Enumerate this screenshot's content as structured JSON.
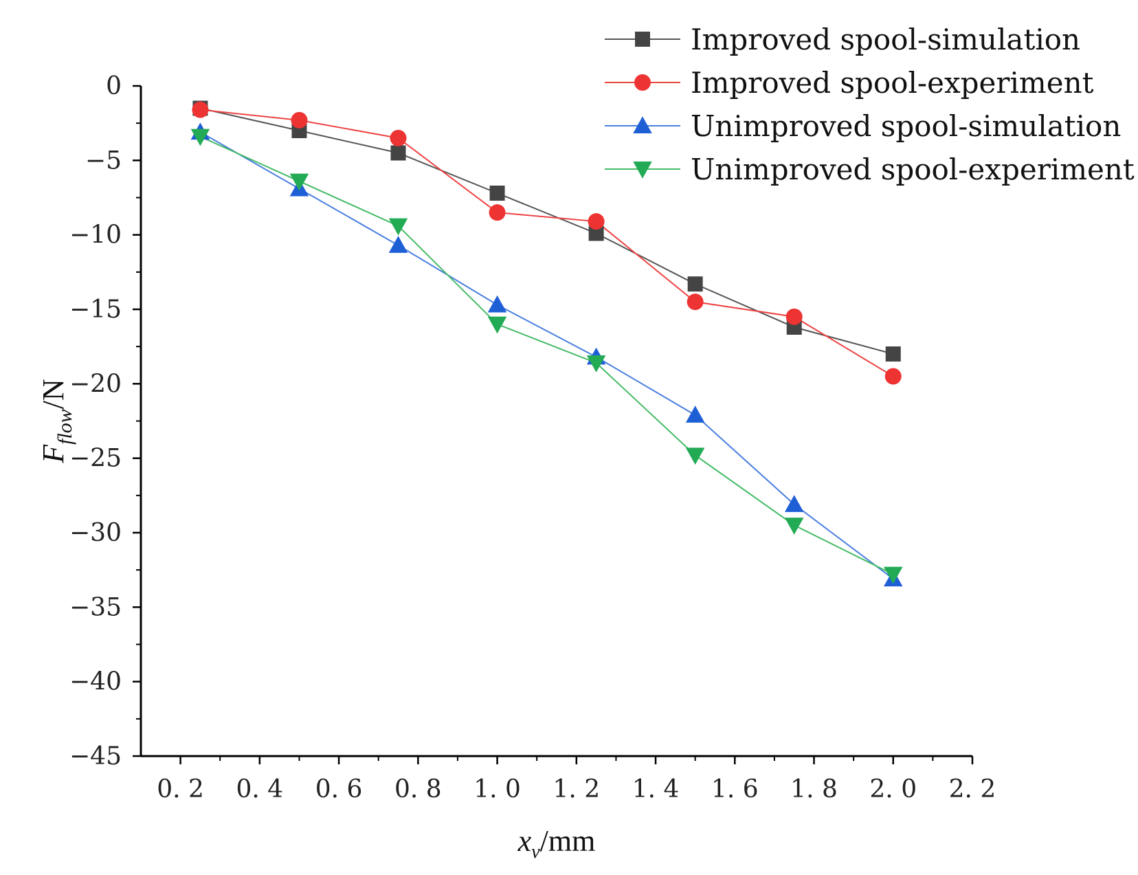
{
  "chart_data": {
    "type": "line",
    "title": "",
    "xlabel": {
      "symbol": "x",
      "subscript": "v",
      "unit": "/mm"
    },
    "ylabel": {
      "symbol": "F",
      "subscript": "flow",
      "unit": "/N"
    },
    "xlim": [
      0.1,
      2.2
    ],
    "ylim": [
      -45,
      0
    ],
    "x_ticks": [
      0.2,
      0.4,
      0.6,
      0.8,
      1.0,
      1.2,
      1.4,
      1.6,
      1.8,
      2.0,
      2.2
    ],
    "x_tick_labels": [
      "0. 2",
      "0. 4",
      "0. 6",
      "0. 8",
      "1. 0",
      "1. 2",
      "1. 4",
      "1. 6",
      "1. 8",
      "2. 0",
      "2. 2"
    ],
    "y_ticks": [
      0,
      -5,
      -10,
      -15,
      -20,
      -25,
      -30,
      -35,
      -40,
      -45
    ],
    "y_tick_labels": [
      "0",
      "−5",
      "−10",
      "−15",
      "−20",
      "−25",
      "−30",
      "−35",
      "−40",
      "−45"
    ],
    "grid": false,
    "legend_position": "top-right",
    "x": [
      0.25,
      0.5,
      0.75,
      1.0,
      1.25,
      1.5,
      1.75,
      2.0
    ],
    "series": [
      {
        "name": "Improved spool-simulation",
        "marker": "square",
        "color": "#444444",
        "line_color": "#555555",
        "values": [
          -1.5,
          -3.0,
          -4.5,
          -7.2,
          -9.9,
          -13.3,
          -16.2,
          -18.0
        ]
      },
      {
        "name": "Improved spool-experiment",
        "marker": "circle",
        "color": "#ee3333",
        "line_color": "#ee4444",
        "values": [
          -1.6,
          -2.3,
          -3.5,
          -8.5,
          -9.1,
          -14.5,
          -15.5,
          -19.5
        ]
      },
      {
        "name": "Unimproved spool-simulation",
        "marker": "triangle-up",
        "color": "#1f5fd6",
        "line_color": "#4a7fe0",
        "values": [
          -3.1,
          -6.9,
          -10.7,
          -14.7,
          -18.2,
          -22.1,
          -28.1,
          -33.1
        ]
      },
      {
        "name": "Unimproved spool-experiment",
        "marker": "triangle-down",
        "color": "#22aa55",
        "line_color": "#44bb66",
        "values": [
          -3.4,
          -6.4,
          -9.4,
          -16.0,
          -18.6,
          -24.8,
          -29.5,
          -32.8
        ]
      }
    ]
  }
}
